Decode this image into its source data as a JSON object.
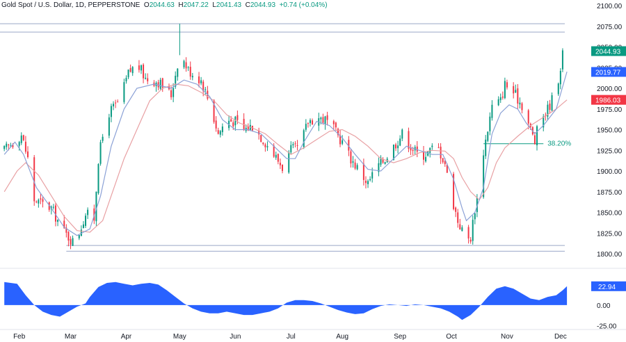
{
  "header": {
    "symbol": "Gold Spot / U.S. Dollar, 1D, PEPPERSTONE",
    "o_label": "O",
    "o_value": "2044.63",
    "h_label": "H",
    "h_value": "2047.22",
    "l_label": "L",
    "l_value": "2041.43",
    "c_label": "C",
    "c_value": "2044.93",
    "change": "+0.74 (+0.04%)"
  },
  "colors": {
    "up": "#089981",
    "down": "#f23645",
    "fast_ma": "#8ba1d6",
    "slow_ma": "#e8a0a3",
    "osc_fill": "#2962ff",
    "levels": "#9aa6c8",
    "fib": "#089981",
    "grid_sep": "#e0e3eb"
  },
  "chart_data": [
    {
      "type": "candlestick",
      "title": "",
      "ylim": [
        1800,
        2100
      ],
      "y_ticks": [
        "1800.00",
        "1825.00",
        "1850.00",
        "1875.00",
        "1900.00",
        "1925.00",
        "1950.00",
        "1975.00",
        "2000.00",
        "2025.00",
        "2050.00",
        "2075.00",
        "2100.00"
      ],
      "x_ticks": [
        {
          "label": "Feb",
          "day": 7
        },
        {
          "label": "Mar",
          "day": 31
        },
        {
          "label": "Apr",
          "day": 57
        },
        {
          "label": "May",
          "day": 82
        },
        {
          "label": "Jun",
          "day": 108
        },
        {
          "label": "Jul",
          "day": 134
        },
        {
          "label": "Aug",
          "day": 158
        },
        {
          "label": "Sep",
          "day": 185
        },
        {
          "label": "Oct",
          "day": 209
        },
        {
          "label": "Nov",
          "day": 235
        },
        {
          "label": "Dec",
          "day": 260
        }
      ],
      "x_range": [
        -2,
        262
      ],
      "closes_path": [
        [
          0,
          1925
        ],
        [
          8,
          1944
        ],
        [
          11,
          1915
        ],
        [
          14,
          1865
        ],
        [
          22,
          1855
        ],
        [
          28,
          1826
        ],
        [
          33,
          1812
        ],
        [
          38,
          1848
        ],
        [
          42,
          1843
        ],
        [
          44,
          1915
        ],
        [
          48,
          1968
        ],
        [
          54,
          1985
        ],
        [
          58,
          2018
        ],
        [
          62,
          2030
        ],
        [
          66,
          2012
        ],
        [
          72,
          2008
        ],
        [
          78,
          1992
        ],
        [
          82,
          2043
        ],
        [
          86,
          2022
        ],
        [
          92,
          2010
        ],
        [
          96,
          1982
        ],
        [
          100,
          1945
        ],
        [
          104,
          1962
        ],
        [
          108,
          1960
        ],
        [
          112,
          1950
        ],
        [
          116,
          1955
        ],
        [
          122,
          1935
        ],
        [
          126,
          1920
        ],
        [
          130,
          1905
        ],
        [
          134,
          1925
        ],
        [
          138,
          1928
        ],
        [
          142,
          1960
        ],
        [
          146,
          1965
        ],
        [
          150,
          1962
        ],
        [
          154,
          1950
        ],
        [
          158,
          1935
        ],
        [
          162,
          1915
        ],
        [
          166,
          1900
        ],
        [
          170,
          1885
        ],
        [
          174,
          1905
        ],
        [
          178,
          1915
        ],
        [
          182,
          1930
        ],
        [
          186,
          1945
        ],
        [
          190,
          1930
        ],
        [
          194,
          1918
        ],
        [
          198,
          1922
        ],
        [
          202,
          1932
        ],
        [
          206,
          1910
        ],
        [
          208,
          1880
        ],
        [
          212,
          1840
        ],
        [
          216,
          1816
        ],
        [
          218,
          1820
        ],
        [
          220,
          1855
        ],
        [
          222,
          1878
        ],
        [
          224,
          1924
        ],
        [
          228,
          1978
        ],
        [
          232,
          1985
        ],
        [
          234,
          2005
        ],
        [
          238,
          1995
        ],
        [
          242,
          1980
        ],
        [
          246,
          1950
        ],
        [
          248,
          1935
        ],
        [
          250,
          1960
        ],
        [
          254,
          1975
        ],
        [
          258,
          1998
        ],
        [
          261,
          2040
        ],
        [
          263,
          2045
        ]
      ],
      "fast_ma": [
        [
          0,
          1920
        ],
        [
          5,
          1935
        ],
        [
          9,
          1920
        ],
        [
          15,
          1880
        ],
        [
          22,
          1855
        ],
        [
          28,
          1832
        ],
        [
          34,
          1822
        ],
        [
          40,
          1830
        ],
        [
          45,
          1870
        ],
        [
          50,
          1930
        ],
        [
          56,
          1975
        ],
        [
          62,
          2000
        ],
        [
          70,
          2005
        ],
        [
          78,
          2000
        ],
        [
          84,
          2010
        ],
        [
          90,
          2005
        ],
        [
          96,
          1990
        ],
        [
          102,
          1962
        ],
        [
          108,
          1950
        ],
        [
          114,
          1950
        ],
        [
          120,
          1945
        ],
        [
          126,
          1930
        ],
        [
          132,
          1915
        ],
        [
          136,
          1915
        ],
        [
          140,
          1935
        ],
        [
          146,
          1960
        ],
        [
          152,
          1955
        ],
        [
          158,
          1940
        ],
        [
          164,
          1920
        ],
        [
          170,
          1902
        ],
        [
          176,
          1900
        ],
        [
          182,
          1915
        ],
        [
          188,
          1930
        ],
        [
          194,
          1925
        ],
        [
          200,
          1920
        ],
        [
          205,
          1920
        ],
        [
          210,
          1890
        ],
        [
          214,
          1855
        ],
        [
          216,
          1840
        ],
        [
          220,
          1850
        ],
        [
          224,
          1880
        ],
        [
          228,
          1945
        ],
        [
          232,
          1970
        ],
        [
          236,
          1980
        ],
        [
          240,
          1975
        ],
        [
          244,
          1958
        ],
        [
          248,
          1945
        ],
        [
          252,
          1955
        ],
        [
          258,
          1975
        ],
        [
          263,
          2020
        ]
      ],
      "slow_ma": [
        [
          0,
          1875
        ],
        [
          6,
          1900
        ],
        [
          10,
          1910
        ],
        [
          16,
          1895
        ],
        [
          22,
          1870
        ],
        [
          28,
          1845
        ],
        [
          34,
          1828
        ],
        [
          40,
          1826
        ],
        [
          46,
          1840
        ],
        [
          50,
          1870
        ],
        [
          56,
          1915
        ],
        [
          62,
          1950
        ],
        [
          68,
          1985
        ],
        [
          74,
          2000
        ],
        [
          80,
          2005
        ],
        [
          86,
          2003
        ],
        [
          92,
          1995
        ],
        [
          98,
          1985
        ],
        [
          104,
          1968
        ],
        [
          110,
          1958
        ],
        [
          116,
          1952
        ],
        [
          122,
          1945
        ],
        [
          128,
          1932
        ],
        [
          134,
          1920
        ],
        [
          140,
          1928
        ],
        [
          146,
          1938
        ],
        [
          152,
          1948
        ],
        [
          158,
          1950
        ],
        [
          164,
          1942
        ],
        [
          170,
          1930
        ],
        [
          176,
          1915
        ],
        [
          182,
          1910
        ],
        [
          188,
          1915
        ],
        [
          194,
          1922
        ],
        [
          200,
          1925
        ],
        [
          206,
          1924
        ],
        [
          210,
          1915
        ],
        [
          214,
          1892
        ],
        [
          218,
          1875
        ],
        [
          222,
          1865
        ],
        [
          226,
          1880
        ],
        [
          230,
          1910
        ],
        [
          234,
          1928
        ],
        [
          240,
          1942
        ],
        [
          246,
          1955
        ],
        [
          252,
          1965
        ],
        [
          258,
          1975
        ],
        [
          263,
          1986
        ]
      ],
      "candle_seed": 17,
      "levels": [
        {
          "y": 2078,
          "x_from": -2,
          "x_to": 262
        },
        {
          "y": 2068,
          "x_from": -2,
          "x_to": 262
        },
        {
          "y": 1810,
          "x_from": 29,
          "x_to": 262
        },
        {
          "y": 1803,
          "x_from": 29,
          "x_to": 262
        }
      ],
      "fib": {
        "label": "38.20%",
        "y": 1933,
        "x_from": 224,
        "x_to": 252
      },
      "badges": [
        {
          "text": "2044.93",
          "y": 2044.93,
          "color": "#089981"
        },
        {
          "text": "2019.77",
          "y": 2019.77,
          "color": "#2962ff"
        },
        {
          "text": "1986.03",
          "y": 1986.03,
          "color": "#f23645"
        }
      ]
    },
    {
      "type": "area",
      "title": "",
      "ylim": [
        -28,
        38
      ],
      "y_ticks": [
        "-25.00",
        "0.00"
      ],
      "current_label": "22.94",
      "current_value": 22.94,
      "values": [
        [
          0,
          28
        ],
        [
          6,
          26
        ],
        [
          10,
          12
        ],
        [
          14,
          0
        ],
        [
          18,
          -8
        ],
        [
          22,
          -12
        ],
        [
          26,
          -14
        ],
        [
          30,
          -8
        ],
        [
          34,
          -2
        ],
        [
          38,
          2
        ],
        [
          40,
          10
        ],
        [
          44,
          22
        ],
        [
          48,
          27
        ],
        [
          52,
          28
        ],
        [
          56,
          26
        ],
        [
          60,
          24
        ],
        [
          64,
          26
        ],
        [
          68,
          27
        ],
        [
          72,
          25
        ],
        [
          76,
          18
        ],
        [
          80,
          10
        ],
        [
          84,
          2
        ],
        [
          88,
          -4
        ],
        [
          92,
          -8
        ],
        [
          96,
          -10
        ],
        [
          100,
          -10
        ],
        [
          104,
          -8
        ],
        [
          108,
          -10
        ],
        [
          112,
          -12
        ],
        [
          116,
          -12
        ],
        [
          120,
          -10
        ],
        [
          124,
          -8
        ],
        [
          128,
          -4
        ],
        [
          132,
          3
        ],
        [
          136,
          6
        ],
        [
          140,
          6
        ],
        [
          144,
          5
        ],
        [
          148,
          2
        ],
        [
          152,
          -2
        ],
        [
          156,
          -6
        ],
        [
          160,
          -9
        ],
        [
          164,
          -11
        ],
        [
          168,
          -10
        ],
        [
          172,
          -5
        ],
        [
          176,
          -1
        ],
        [
          180,
          1
        ],
        [
          184,
          0
        ],
        [
          188,
          -1
        ],
        [
          192,
          1
        ],
        [
          196,
          0
        ],
        [
          200,
          -2
        ],
        [
          204,
          -4
        ],
        [
          208,
          -8
        ],
        [
          212,
          -14
        ],
        [
          214,
          -18
        ],
        [
          218,
          -12
        ],
        [
          222,
          -2
        ],
        [
          226,
          10
        ],
        [
          230,
          20
        ],
        [
          234,
          23
        ],
        [
          238,
          20
        ],
        [
          242,
          14
        ],
        [
          246,
          8
        ],
        [
          250,
          6
        ],
        [
          254,
          10
        ],
        [
          258,
          12
        ],
        [
          261,
          18
        ],
        [
          263,
          22.94
        ]
      ]
    }
  ]
}
